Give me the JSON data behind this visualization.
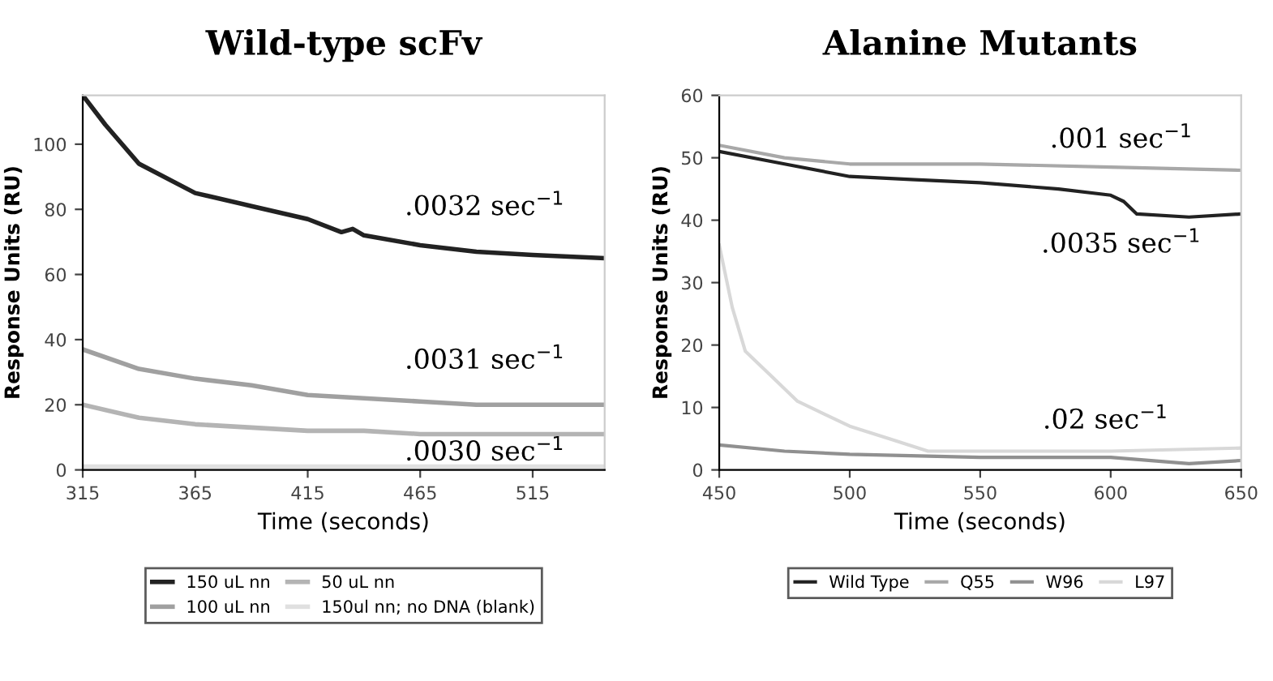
{
  "chart_data": [
    {
      "type": "line",
      "title": "Wild-type scFv",
      "xlabel": "Time (seconds)",
      "ylabel": "Response Units (RU)",
      "xlim": [
        315,
        547
      ],
      "ylim": [
        0,
        115
      ],
      "xticks": [
        315,
        365,
        415,
        465,
        515
      ],
      "yticks": [
        0,
        20,
        40,
        60,
        80,
        100
      ],
      "grid": false,
      "legend": "bottom",
      "marker": "none",
      "line_style": "solid",
      "series": [
        {
          "name": "150 uL nn",
          "color": "#222222",
          "x": [
            315,
            325,
            340,
            365,
            390,
            415,
            430,
            435,
            440,
            465,
            490,
            515,
            547
          ],
          "values": [
            115,
            106,
            94,
            85,
            81,
            77,
            73,
            74,
            72,
            69,
            67,
            66,
            65
          ]
        },
        {
          "name": "100 uL nn",
          "color": "#a0a0a0",
          "x": [
            315,
            340,
            365,
            390,
            415,
            440,
            465,
            490,
            515,
            547
          ],
          "values": [
            37,
            31,
            28,
            26,
            23,
            22,
            21,
            20,
            20,
            20
          ]
        },
        {
          "name": "50 uL nn",
          "color": "#b4b4b4",
          "x": [
            315,
            340,
            365,
            390,
            415,
            440,
            465,
            490,
            515,
            547
          ],
          "values": [
            20,
            16,
            14,
            13,
            12,
            12,
            11,
            11,
            11,
            11
          ]
        },
        {
          "name": "150ul nn; no DNA (blank)",
          "color": "#e0e0e0",
          "x": [
            315,
            547
          ],
          "values": [
            1,
            1
          ]
        }
      ],
      "annotations": [
        ".0032 sec$^{−1}$",
        ".0031 sec$^{−1}$",
        ".0030 sec$^{−1}$"
      ]
    },
    {
      "type": "line",
      "title": "Alanine Mutants",
      "xlabel": "Time (seconds)",
      "ylabel": "Response Units (RU)",
      "xlim": [
        450,
        650
      ],
      "ylim": [
        0,
        60
      ],
      "xticks": [
        450,
        500,
        550,
        600,
        650
      ],
      "yticks": [
        0,
        10,
        20,
        30,
        40,
        50,
        60
      ],
      "grid": false,
      "legend": "bottom",
      "marker": "none",
      "line_style": "solid",
      "series": [
        {
          "name": "Wild Type",
          "color": "#222222",
          "x": [
            450,
            475,
            500,
            525,
            550,
            580,
            600,
            605,
            610,
            630,
            650
          ],
          "values": [
            51,
            49,
            47,
            46.5,
            46,
            45,
            44,
            43,
            41,
            40.5,
            41
          ]
        },
        {
          "name": "Q55",
          "color": "#a8a8a8",
          "x": [
            450,
            475,
            500,
            550,
            600,
            650
          ],
          "values": [
            52,
            50,
            49,
            49,
            48.5,
            48
          ]
        },
        {
          "name": "W96",
          "color": "#909090",
          "x": [
            450,
            475,
            500,
            550,
            600,
            630,
            650
          ],
          "values": [
            4,
            3,
            2.5,
            2,
            2,
            1,
            1.5
          ]
        },
        {
          "name": "L97",
          "color": "#d8d8d8",
          "x": [
            450,
            455,
            460,
            470,
            480,
            490,
            500,
            515,
            530,
            550,
            600,
            650
          ],
          "values": [
            36,
            26,
            19,
            15,
            11,
            9,
            7,
            5,
            3,
            3,
            3,
            3.5
          ]
        }
      ],
      "annotations": [
        ".001 sec$^{−1}$",
        ".0035 sec$^{−1}$",
        ".02 sec$^{−1}$"
      ]
    }
  ]
}
